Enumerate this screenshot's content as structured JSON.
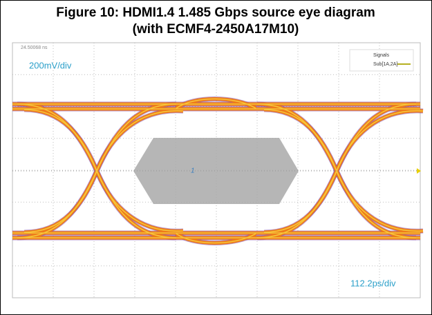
{
  "figure": {
    "title_line1": "Figure 10: HDMI1.4 1.485 Gbps source eye diagram",
    "title_line2": "(with ECMF4-2450A17M10)"
  },
  "scope": {
    "timestamp": "24.50068 ns",
    "vertical_scale": "200mV/div",
    "horizontal_scale": "112.2ps/div",
    "marker": "1",
    "legend": {
      "title": "Signals",
      "entry": "Sub[1A,2A]"
    }
  }
}
